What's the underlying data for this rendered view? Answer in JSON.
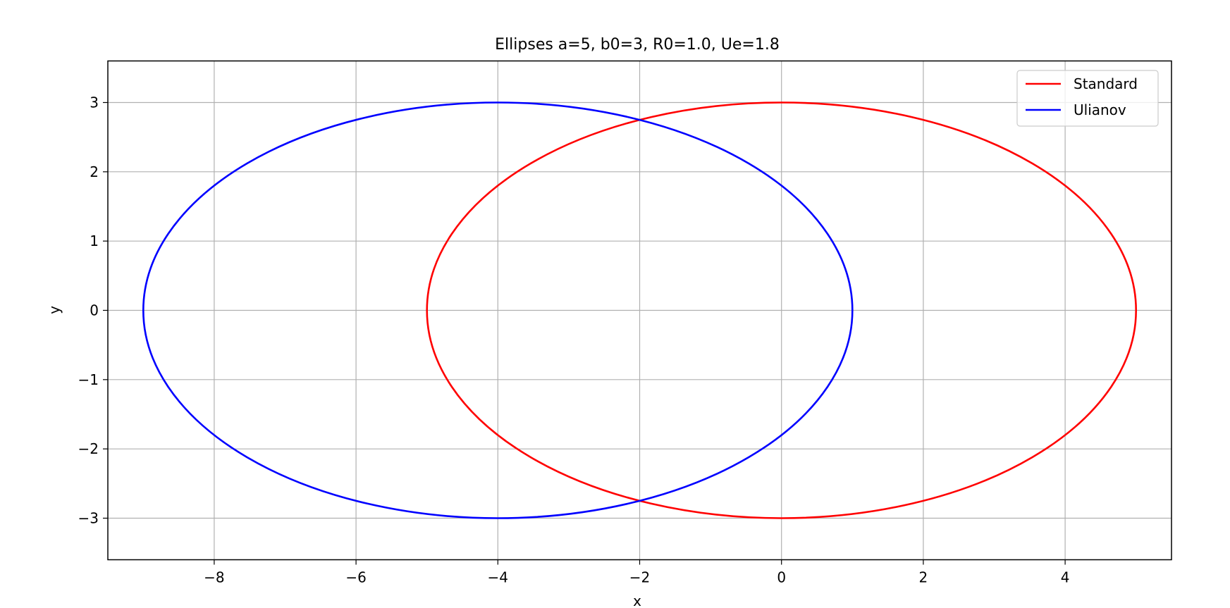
{
  "chart_data": {
    "type": "line",
    "title": "Ellipses a=5, b0=3, R0=1.0, Ue=1.8",
    "xlabel": "x",
    "ylabel": "y",
    "xlim": [
      -9.5,
      5.5
    ],
    "ylim": [
      -3.6,
      3.6
    ],
    "xticks": [
      -8,
      -6,
      -4,
      -2,
      0,
      2,
      4
    ],
    "xtick_labels": [
      "−8",
      "−6",
      "−4",
      "−2",
      "0",
      "2",
      "4"
    ],
    "yticks": [
      -3,
      -2,
      -1,
      0,
      1,
      2,
      3
    ],
    "ytick_labels": [
      "−3",
      "−2",
      "−1",
      "0",
      "1",
      "2",
      "3"
    ],
    "grid": true,
    "legend_position": "top-right",
    "series": [
      {
        "name": "Standard",
        "color": "#ff0000",
        "shape": "ellipse",
        "center": [
          0,
          0
        ],
        "semi_axis_x": 5,
        "semi_axis_y": 3
      },
      {
        "name": "Ulianov",
        "color": "#0000ff",
        "shape": "ellipse",
        "center": [
          -4,
          0
        ],
        "semi_axis_x": 5,
        "semi_axis_y": 3
      }
    ]
  }
}
